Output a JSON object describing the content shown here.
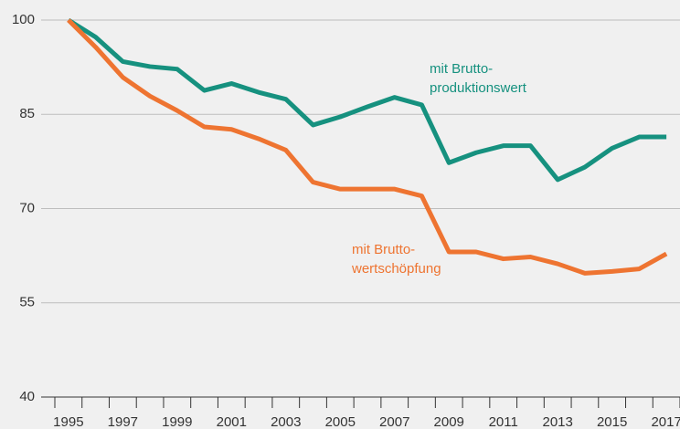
{
  "chart_data": {
    "type": "line",
    "categories": [
      "1995",
      null,
      "1997",
      null,
      "1999",
      null,
      "2001",
      null,
      "2003",
      null,
      "2005",
      null,
      "2007",
      null,
      "2009",
      null,
      "2011",
      null,
      "2013",
      null,
      "2015",
      null,
      "2017"
    ],
    "series": [
      {
        "name": "mit Brutto-produktionswert",
        "color": "#16917f",
        "values": [
          100,
          97.3,
          93.4,
          92.6,
          92.2,
          88.8,
          89.9,
          88.5,
          87.4,
          83.3,
          84.6,
          86.2,
          87.7,
          86.5,
          77.3,
          78.9,
          80,
          80,
          74.6,
          76.6,
          79.6,
          81.4,
          81.4
        ]
      },
      {
        "name": "mit Brutto-wertschöpfung",
        "color": "#ee7431",
        "values": [
          100,
          95.7,
          90.9,
          87.9,
          85.6,
          83,
          82.6,
          81.1,
          79.3,
          74.2,
          73.1,
          73.1,
          73.1,
          72,
          63.1,
          63.1,
          62,
          62.3,
          61.2,
          59.7,
          60,
          60.4,
          62.8
        ]
      }
    ],
    "annotations": [
      {
        "lines": [
          "mit Brutto-",
          "produktionswert"
        ],
        "series": 0
      },
      {
        "lines": [
          "mit Brutto-",
          "wertschöpfung"
        ],
        "series": 1
      }
    ],
    "ylim": [
      40,
      100
    ],
    "yticks": [
      40,
      55,
      70,
      85,
      100
    ],
    "grid": true
  }
}
